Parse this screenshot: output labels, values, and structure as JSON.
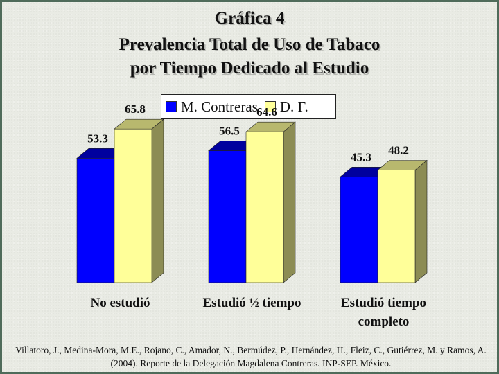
{
  "title_lines": [
    "Gráfica 4",
    "Prevalencia Total de Uso de Tabaco",
    "por Tiempo Dedicado al Estudio"
  ],
  "legend": {
    "items": [
      {
        "label": "M. Contreras",
        "color": "#0000ff"
      },
      {
        "label": "D. F.",
        "color": "#ffff99"
      }
    ]
  },
  "chart_data": {
    "type": "bar",
    "title": "Gráfica 4 Prevalencia Total de Uso de Tabaco por Tiempo Dedicado al Estudio",
    "categories": [
      "No estudió",
      "Estudió ½ tiempo",
      "Estudió tiempo completo"
    ],
    "category_lines": [
      [
        "No estudió"
      ],
      [
        "Estudió ½ tiempo"
      ],
      [
        "Estudió tiempo",
        "completo"
      ]
    ],
    "series": [
      {
        "name": "M. Contreras",
        "values": [
          53.3,
          56.5,
          45.3
        ],
        "color": "#0000ff"
      },
      {
        "name": "D. F.",
        "values": [
          65.8,
          64.6,
          48.2
        ],
        "color": "#ffff99"
      }
    ],
    "data_labels": [
      [
        "53.3",
        "56.5",
        "45.3"
      ],
      [
        "65.8",
        "64.6",
        "48.2"
      ]
    ],
    "ylim": [
      0,
      70
    ],
    "xlabel": "",
    "ylabel": "",
    "grid": false,
    "legend_position": "top",
    "style": "3d-clustered-bar"
  },
  "source": "Villatoro, J., Medina-Mora, M.E., Rojano, C., Amador, N., Bermúdez, P., Hernández, H., Fleiz, C., Gutiérrez, M. y Ramos, A. (2004). Reporte de la Delegación Magdalena Contreras. INP-SEP. México."
}
